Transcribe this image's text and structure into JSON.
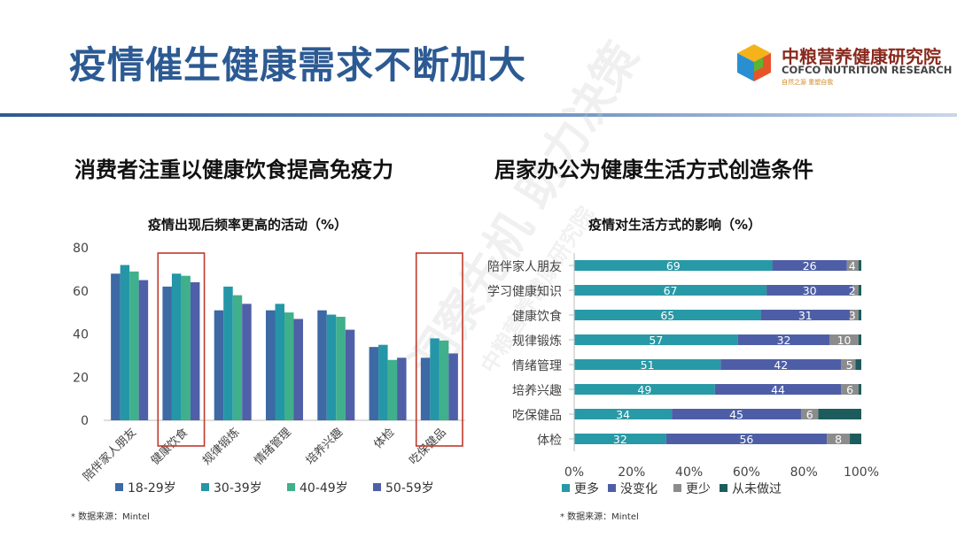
{
  "header": {
    "title": "疫情催生健康需求不断加大",
    "logo_name": "中粮营养健康研究院",
    "logo_en": "COFCO NUTRITION RESEARCH",
    "logo_tagline": "自然之源 重塑自我"
  },
  "left": {
    "subheading": "消费者注重以健康饮食提高免疫力",
    "chart_title": "疫情出现后频率更高的活动（%）",
    "source": "* 数据来源：Mintel"
  },
  "right": {
    "subheading": "居家办公为健康生活方式创造条件",
    "chart_title": "疫情对生活方式的影响（%）",
    "source": "* 数据来源：Mintel"
  },
  "watermark": {
    "line1": "洞察先机 助力决策",
    "line2": "中粮营养健康研究院"
  },
  "colors": {
    "title": "#2c5a93",
    "highlight_box": "#c0392b",
    "age_18_29": "#3d69a5",
    "age_30_39": "#2496a7",
    "age_40_49": "#3fb08b",
    "age_50_59": "#4f5fa8",
    "more": "#2899a6",
    "no_change": "#4e5ea6",
    "less": "#8c8c8c",
    "never": "#1d5c5c"
  },
  "chart_data": [
    {
      "type": "bar",
      "categories": [
        "陪伴家人朋友",
        "健康饮食",
        "规律锻炼",
        "情绪管理",
        "培养兴趣",
        "体检",
        "吃保健品"
      ],
      "series": [
        {
          "name": "18-29岁",
          "values": [
            68,
            62,
            51,
            51,
            51,
            34,
            29
          ]
        },
        {
          "name": "30-39岁",
          "values": [
            72,
            68,
            62,
            54,
            49,
            35,
            38
          ]
        },
        {
          "name": "40-49岁",
          "values": [
            69,
            67,
            58,
            50,
            48,
            28,
            37
          ]
        },
        {
          "name": "50-59岁",
          "values": [
            65,
            64,
            54,
            47,
            42,
            29,
            31
          ]
        }
      ],
      "ylim": [
        0,
        80
      ],
      "yticks": [
        "0",
        "20",
        "40",
        "60",
        "80"
      ],
      "highlighted_categories": [
        "健康饮食",
        "吃保健品"
      ],
      "legend_position": "bottom",
      "grid": false
    },
    {
      "type": "bar",
      "orientation": "horizontal",
      "stacked": true,
      "categories": [
        "陪伴家人朋友",
        "学习健康知识",
        "健康饮食",
        "规律锻炼",
        "情绪管理",
        "培养兴趣",
        "吃保健品",
        "体检"
      ],
      "series": [
        {
          "name": "更多",
          "values": [
            69,
            67,
            65,
            57,
            51,
            49,
            34,
            32
          ]
        },
        {
          "name": "没变化",
          "values": [
            26,
            30,
            31,
            32,
            42,
            44,
            45,
            56
          ]
        },
        {
          "name": "更少",
          "values": [
            4,
            2,
            3,
            10,
            5,
            6,
            6,
            8
          ]
        },
        {
          "name": "从未做过",
          "values": [
            1,
            1,
            1,
            1,
            2,
            1,
            15,
            4
          ]
        }
      ],
      "data_labels": [
        [
          "69",
          "26",
          "4",
          ""
        ],
        [
          "67",
          "30",
          "2",
          ""
        ],
        [
          "65",
          "31",
          "3",
          ""
        ],
        [
          "57",
          "32",
          "10",
          ""
        ],
        [
          "51",
          "42",
          "5",
          ""
        ],
        [
          "49",
          "44",
          "6",
          ""
        ],
        [
          "34",
          "45",
          "6",
          ""
        ],
        [
          "32",
          "56",
          "8",
          ""
        ]
      ],
      "xlim": [
        0,
        100
      ],
      "xticks": [
        "0%",
        "20%",
        "40%",
        "60%",
        "80%",
        "100%"
      ],
      "legend_position": "bottom",
      "grid": false
    }
  ]
}
